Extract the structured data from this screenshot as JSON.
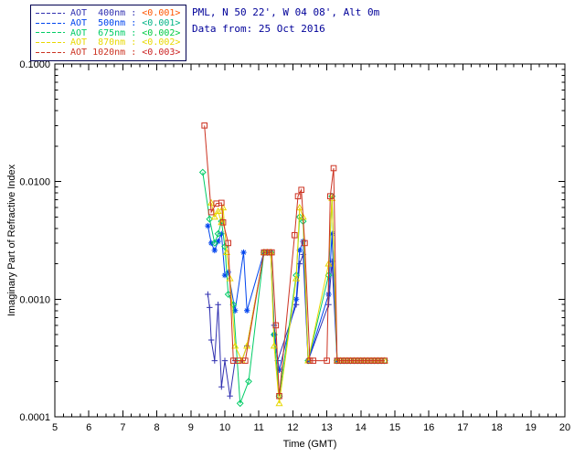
{
  "header": {
    "location": "PML, N 50 22', W 04 08', Alt 0m",
    "date": "Data from: 25 Oct 2016",
    "text_color": "#000099"
  },
  "legend": {
    "entries": [
      {
        "label": "AOT  400nm : ",
        "value": "<0.001>",
        "color": "#3030b0",
        "value_color": "#ff5500"
      },
      {
        "label": "AOT  500nm : ",
        "value": "<0.001>",
        "color": "#0044ee",
        "value_color": "#00b386"
      },
      {
        "label": "AOT  675nm : ",
        "value": "<0.002>",
        "color": "#00cc66",
        "value_color": "#00cc44"
      },
      {
        "label": "AOT  870nm : ",
        "value": "<0.002>",
        "color": "#e8d800",
        "value_color": "#e8d800"
      },
      {
        "label": "AOT 1020nm : ",
        "value": "<0.003>",
        "color": "#cc3322",
        "value_color": "#cc2222"
      }
    ]
  },
  "chart_data": {
    "type": "line",
    "title": "",
    "xlabel": "Time (GMT)",
    "ylabel": "Imaginary Part of Refractive Index",
    "xlim": [
      5,
      20
    ],
    "ylim": [
      0.0001,
      0.1
    ],
    "y_scale": "log",
    "grid": false,
    "legend_position": "top-left",
    "x_ticks": [
      5,
      6,
      7,
      8,
      9,
      10,
      11,
      12,
      13,
      14,
      15,
      16,
      17,
      18,
      19,
      20
    ],
    "y_ticks": [
      0.0001,
      0.001,
      0.01,
      0.1
    ],
    "y_tick_labels": [
      "0.0001",
      "0.0010",
      "0.0100",
      "0.1000"
    ],
    "series": [
      {
        "name": "AOT 400nm",
        "wavelength": "400nm",
        "marker": "plus",
        "color": "#3030b0",
        "points": [
          [
            9.5,
            0.0011
          ],
          [
            9.55,
            0.00085
          ],
          [
            9.6,
            0.00045
          ],
          [
            9.7,
            0.0003
          ],
          [
            9.8,
            0.0009
          ],
          [
            9.9,
            0.00018
          ],
          [
            10.0,
            0.0003
          ],
          [
            10.15,
            0.00015
          ],
          [
            10.3,
            0.0003
          ],
          [
            10.5,
            0.0003
          ],
          [
            10.65,
            0.0004
          ],
          [
            11.15,
            0.0025
          ],
          [
            11.25,
            0.0025
          ],
          [
            11.35,
            0.0025
          ],
          [
            11.45,
            0.0006
          ],
          [
            11.55,
            0.0003
          ],
          [
            12.1,
            0.0009
          ],
          [
            12.2,
            0.002
          ],
          [
            12.3,
            0.0024
          ],
          [
            12.45,
            0.0003
          ],
          [
            13.05,
            0.0009
          ],
          [
            13.15,
            0.0021
          ],
          [
            13.3,
            0.0003
          ]
        ]
      },
      {
        "name": "AOT 500nm",
        "wavelength": "500nm",
        "marker": "asterisk",
        "color": "#0044ee",
        "points": [
          [
            9.5,
            0.0042
          ],
          [
            9.6,
            0.003
          ],
          [
            9.7,
            0.0026
          ],
          [
            9.8,
            0.0031
          ],
          [
            9.9,
            0.0036
          ],
          [
            10.0,
            0.0016
          ],
          [
            10.1,
            0.0017
          ],
          [
            10.3,
            0.0008
          ],
          [
            10.55,
            0.0025
          ],
          [
            10.65,
            0.0008
          ],
          [
            11.15,
            0.0025
          ],
          [
            11.25,
            0.0025
          ],
          [
            11.35,
            0.0025
          ],
          [
            11.45,
            0.0005
          ],
          [
            11.6,
            0.00025
          ],
          [
            12.1,
            0.001
          ],
          [
            12.2,
            0.0026
          ],
          [
            12.3,
            0.0031
          ],
          [
            12.45,
            0.0003
          ],
          [
            13.05,
            0.0011
          ],
          [
            13.15,
            0.0036
          ],
          [
            13.3,
            0.0003
          ]
        ]
      },
      {
        "name": "AOT 675nm",
        "wavelength": "675nm",
        "marker": "diamond",
        "color": "#00cc66",
        "points": [
          [
            9.35,
            0.012
          ],
          [
            9.55,
            0.0048
          ],
          [
            9.7,
            0.003
          ],
          [
            9.8,
            0.0036
          ],
          [
            9.9,
            0.0046
          ],
          [
            10.0,
            0.0028
          ],
          [
            10.1,
            0.0011
          ],
          [
            10.25,
            0.0009
          ],
          [
            10.45,
            0.00013
          ],
          [
            10.7,
            0.0002
          ],
          [
            11.15,
            0.0025
          ],
          [
            11.25,
            0.0025
          ],
          [
            11.35,
            0.0025
          ],
          [
            11.45,
            0.0005
          ],
          [
            11.6,
            0.00015
          ],
          [
            12.1,
            0.0016
          ],
          [
            12.2,
            0.005
          ],
          [
            12.3,
            0.0046
          ],
          [
            12.45,
            0.0003
          ],
          [
            13.05,
            0.0016
          ],
          [
            13.15,
            0.0075
          ],
          [
            13.3,
            0.0003
          ],
          [
            13.4,
            0.0003
          ],
          [
            13.5,
            0.0003
          ],
          [
            13.6,
            0.0003
          ],
          [
            13.7,
            0.0003
          ],
          [
            13.8,
            0.0003
          ],
          [
            13.9,
            0.0003
          ],
          [
            14.0,
            0.0003
          ],
          [
            14.1,
            0.0003
          ],
          [
            14.2,
            0.0003
          ],
          [
            14.3,
            0.0003
          ],
          [
            14.4,
            0.0003
          ],
          [
            14.5,
            0.0003
          ],
          [
            14.6,
            0.0003
          ],
          [
            14.7,
            0.0003
          ]
        ]
      },
      {
        "name": "AOT 870nm",
        "wavelength": "870nm",
        "marker": "triangle",
        "color": "#e8d800",
        "points": [
          [
            9.6,
            0.0066
          ],
          [
            9.7,
            0.005
          ],
          [
            9.8,
            0.0056
          ],
          [
            9.9,
            0.0045
          ],
          [
            9.95,
            0.006
          ],
          [
            10.05,
            0.0025
          ],
          [
            10.15,
            0.0015
          ],
          [
            10.3,
            0.0004
          ],
          [
            10.5,
            0.0003
          ],
          [
            10.65,
            0.0004
          ],
          [
            11.15,
            0.0025
          ],
          [
            11.25,
            0.0025
          ],
          [
            11.35,
            0.0025
          ],
          [
            11.45,
            0.0004
          ],
          [
            11.6,
            0.00013
          ],
          [
            12.1,
            0.0015
          ],
          [
            12.2,
            0.006
          ],
          [
            12.3,
            0.005
          ],
          [
            12.45,
            0.0003
          ],
          [
            13.05,
            0.002
          ],
          [
            13.15,
            0.0072
          ],
          [
            13.3,
            0.0003
          ],
          [
            13.4,
            0.0003
          ],
          [
            13.5,
            0.0003
          ],
          [
            13.6,
            0.0003
          ],
          [
            13.7,
            0.0003
          ],
          [
            13.8,
            0.0003
          ],
          [
            13.9,
            0.0003
          ],
          [
            14.0,
            0.0003
          ],
          [
            14.1,
            0.0003
          ],
          [
            14.2,
            0.0003
          ],
          [
            14.3,
            0.0003
          ],
          [
            14.4,
            0.0003
          ],
          [
            14.5,
            0.0003
          ],
          [
            14.6,
            0.0003
          ],
          [
            14.7,
            0.0003
          ]
        ]
      },
      {
        "name": "AOT 1020nm",
        "wavelength": "1020nm",
        "marker": "square",
        "color": "#cc3322",
        "points": [
          [
            9.4,
            0.03
          ],
          [
            9.6,
            0.0055
          ],
          [
            9.75,
            0.0065
          ],
          [
            9.9,
            0.0066
          ],
          [
            9.95,
            0.0045
          ],
          [
            10.1,
            0.003
          ],
          [
            10.25,
            0.0003
          ],
          [
            10.4,
            0.0003
          ],
          [
            10.6,
            0.0003
          ],
          [
            11.15,
            0.0025
          ],
          [
            11.22,
            0.0025
          ],
          [
            11.3,
            0.0025
          ],
          [
            11.38,
            0.0025
          ],
          [
            11.5,
            0.0006
          ],
          [
            11.6,
            0.00015
          ],
          [
            12.05,
            0.0035
          ],
          [
            12.15,
            0.0075
          ],
          [
            12.25,
            0.0085
          ],
          [
            12.35,
            0.003
          ],
          [
            12.5,
            0.0003
          ],
          [
            12.6,
            0.0003
          ],
          [
            13.0,
            0.0003
          ],
          [
            13.1,
            0.0075
          ],
          [
            13.2,
            0.013
          ],
          [
            13.3,
            0.0003
          ],
          [
            13.4,
            0.0003
          ],
          [
            13.5,
            0.0003
          ],
          [
            13.6,
            0.0003
          ],
          [
            13.7,
            0.0003
          ],
          [
            13.8,
            0.0003
          ],
          [
            13.9,
            0.0003
          ],
          [
            14.0,
            0.0003
          ],
          [
            14.1,
            0.0003
          ],
          [
            14.2,
            0.0003
          ],
          [
            14.3,
            0.0003
          ],
          [
            14.4,
            0.0003
          ],
          [
            14.5,
            0.0003
          ],
          [
            14.6,
            0.0003
          ],
          [
            14.7,
            0.0003
          ]
        ]
      }
    ]
  }
}
